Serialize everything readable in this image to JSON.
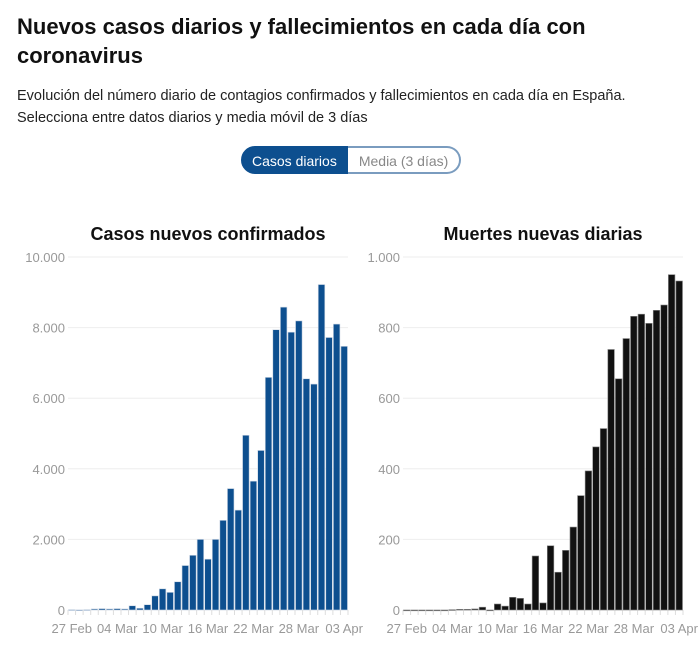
{
  "header": {
    "title": "Nuevos casos diarios y fallecimientos en cada día con coronavirus",
    "subtitle_line1": "Evolución del número diario de contagios confirmados y fallecimientos en cada día en España.",
    "subtitle_line2": "Selecciona entre datos diarios y media móvil de 3 días"
  },
  "toggle": {
    "active": "Casos diarios",
    "inactive": "Media (3 días)"
  },
  "colors": {
    "cases": "#0d4f8f",
    "deaths": "#111111",
    "grid": "#eeeeee",
    "axis_text": "#999999"
  },
  "chart_data": [
    {
      "type": "bar",
      "title": "Casos nuevos confirmados",
      "ylim": [
        0,
        10000
      ],
      "yticks": [
        {
          "v": 0,
          "label": "0"
        },
        {
          "v": 2000,
          "label": "2.000"
        },
        {
          "v": 4000,
          "label": "4.000"
        },
        {
          "v": 6000,
          "label": "6.000"
        },
        {
          "v": 8000,
          "label": "8.000"
        },
        {
          "v": 10000,
          "label": "10.000"
        }
      ],
      "xticks": [
        {
          "i": 0,
          "label": "27 Feb"
        },
        {
          "i": 6,
          "label": "04 Mar"
        },
        {
          "i": 12,
          "label": "10 Mar"
        },
        {
          "i": 18,
          "label": "16 Mar"
        },
        {
          "i": 24,
          "label": "22 Mar"
        },
        {
          "i": 30,
          "label": "28 Mar"
        },
        {
          "i": 36,
          "label": "03 Apr"
        }
      ],
      "values": [
        10,
        5,
        10,
        30,
        40,
        30,
        40,
        30,
        120,
        50,
        150,
        400,
        600,
        500,
        800,
        1260,
        1550,
        2000,
        1440,
        2000,
        2540,
        3440,
        2830,
        4950,
        3650,
        4520,
        6590,
        7940,
        8580,
        7870,
        8190,
        6550,
        6400,
        9220,
        7720,
        8100,
        7470
      ]
    },
    {
      "type": "bar",
      "title": "Muertes nuevas diarias",
      "ylim": [
        0,
        1000
      ],
      "yticks": [
        {
          "v": 0,
          "label": "0"
        },
        {
          "v": 200,
          "label": "200"
        },
        {
          "v": 400,
          "label": "400"
        },
        {
          "v": 600,
          "label": "600"
        },
        {
          "v": 800,
          "label": "800"
        },
        {
          "v": 1000,
          "label": "1.000"
        }
      ],
      "xticks": [
        {
          "i": 0,
          "label": "27 Feb"
        },
        {
          "i": 6,
          "label": "04 Mar"
        },
        {
          "i": 12,
          "label": "10 Mar"
        },
        {
          "i": 18,
          "label": "16 Mar"
        },
        {
          "i": 24,
          "label": "22 Mar"
        },
        {
          "i": 30,
          "label": "28 Mar"
        },
        {
          "i": 36,
          "label": "03 Apr"
        }
      ],
      "values": [
        0,
        0,
        0,
        0,
        0,
        0,
        1,
        2,
        2,
        3,
        8,
        0,
        17,
        11,
        36,
        33,
        17,
        153,
        20,
        182,
        107,
        169,
        235,
        324,
        394,
        462,
        514,
        738,
        655,
        769,
        832,
        838,
        812,
        849,
        864,
        950,
        932
      ]
    }
  ]
}
